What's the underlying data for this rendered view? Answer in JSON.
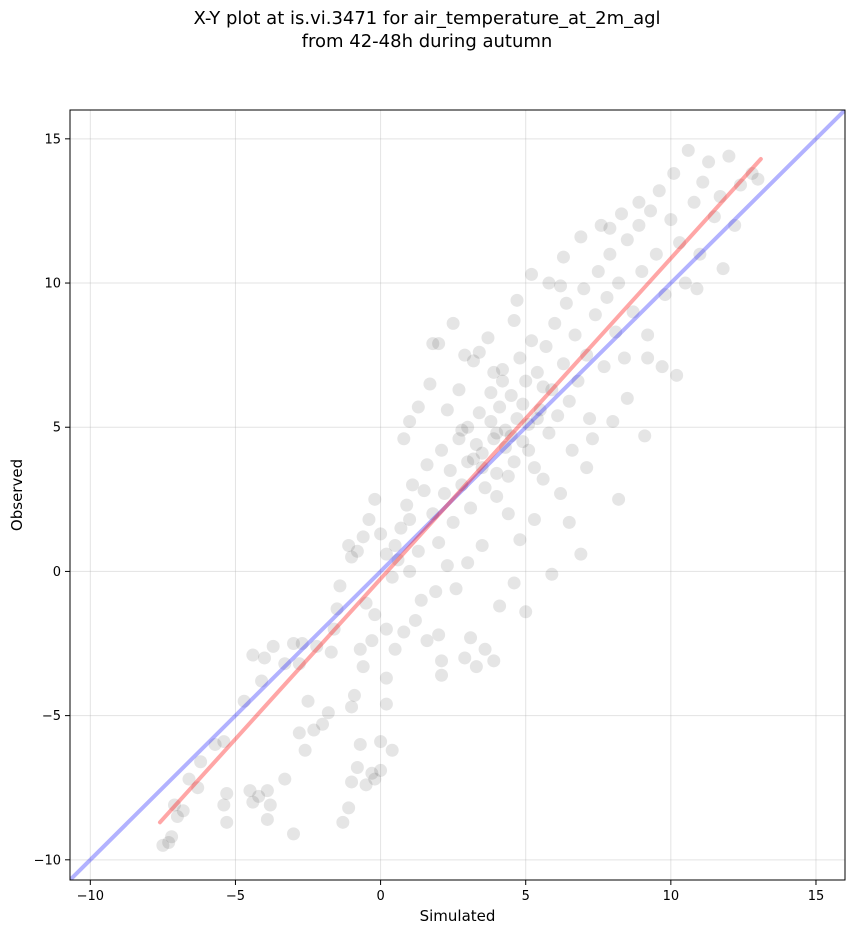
{
  "chart_data": {
    "type": "scatter",
    "title_line1": "X-Y plot at is.vi.3471 for air_temperature_at_2m_agl",
    "title_line2": "from 42-48h during autumn",
    "xlabel": "Simulated",
    "ylabel": "Observed",
    "xlim": [
      -10.7,
      16.0
    ],
    "ylim": [
      -10.7,
      16.0
    ],
    "xticks": [
      -10,
      -5,
      0,
      5,
      10,
      15
    ],
    "yticks": [
      -10,
      -5,
      0,
      5,
      10,
      15
    ],
    "xtick_labels": [
      "−10",
      "−5",
      "0",
      "5",
      "10",
      "15"
    ],
    "ytick_labels": [
      "−10",
      "−5",
      "0",
      "5",
      "10",
      "15"
    ],
    "grid": true,
    "marker_color": "#000000",
    "marker_alpha": 0.1,
    "lines": [
      {
        "role": "identity",
        "color": "#0000ff",
        "alpha": 0.3,
        "x": [
          -10.7,
          16.0
        ],
        "y": [
          -10.7,
          16.0
        ]
      },
      {
        "role": "fit",
        "color": "#ff0000",
        "alpha": 0.35,
        "x": [
          -7.6,
          13.1
        ],
        "y": [
          -8.7,
          14.3
        ]
      }
    ],
    "points": [
      [
        -7.5,
        -9.5
      ],
      [
        -7.2,
        -9.2
      ],
      [
        -7.3,
        -9.4
      ],
      [
        -7.0,
        -8.5
      ],
      [
        -6.8,
        -8.3
      ],
      [
        -7.1,
        -8.1
      ],
      [
        -6.6,
        -7.2
      ],
      [
        -6.3,
        -7.5
      ],
      [
        -6.2,
        -6.6
      ],
      [
        -5.7,
        -6.0
      ],
      [
        -5.4,
        -5.9
      ],
      [
        -5.3,
        -7.7
      ],
      [
        -5.3,
        -8.7
      ],
      [
        -5.4,
        -8.1
      ],
      [
        -4.7,
        -4.5
      ],
      [
        -4.5,
        -7.6
      ],
      [
        -4.4,
        -8.0
      ],
      [
        -4.2,
        -7.8
      ],
      [
        -4.1,
        -3.8
      ],
      [
        -4.4,
        -2.9
      ],
      [
        -4.0,
        -3.0
      ],
      [
        -3.9,
        -8.6
      ],
      [
        -3.8,
        -8.1
      ],
      [
        -3.7,
        -2.6
      ],
      [
        -3.9,
        -7.6
      ],
      [
        -3.3,
        -7.2
      ],
      [
        -3.0,
        -9.1
      ],
      [
        -3.3,
        -3.2
      ],
      [
        -3.0,
        -2.5
      ],
      [
        -2.7,
        -2.5
      ],
      [
        -2.8,
        -3.2
      ],
      [
        -2.5,
        -4.5
      ],
      [
        -2.6,
        -6.2
      ],
      [
        -2.8,
        -5.6
      ],
      [
        -2.3,
        -5.5
      ],
      [
        -2.2,
        -2.6
      ],
      [
        -2.0,
        -5.3
      ],
      [
        -1.8,
        -4.9
      ],
      [
        -1.7,
        -2.8
      ],
      [
        -1.6,
        -2.0
      ],
      [
        -1.4,
        -0.5
      ],
      [
        -1.5,
        -1.3
      ],
      [
        -1.3,
        -8.7
      ],
      [
        -1.1,
        -8.2
      ],
      [
        -1.0,
        -7.3
      ],
      [
        -0.9,
        -4.3
      ],
      [
        -0.8,
        -6.8
      ],
      [
        -1.0,
        -4.7
      ],
      [
        -0.7,
        -2.7
      ],
      [
        -0.6,
        -3.3
      ],
      [
        -0.5,
        -1.1
      ],
      [
        -0.5,
        -7.4
      ],
      [
        -0.3,
        -7.0
      ],
      [
        -0.2,
        -7.2
      ],
      [
        -0.7,
        -6.0
      ],
      [
        0.0,
        -5.9
      ],
      [
        0.2,
        -4.6
      ],
      [
        0.4,
        -6.2
      ],
      [
        0.0,
        -6.9
      ],
      [
        0.2,
        -3.7
      ],
      [
        -1.1,
        0.9
      ],
      [
        -1.0,
        0.5
      ],
      [
        -0.8,
        0.7
      ],
      [
        -0.6,
        1.2
      ],
      [
        -0.4,
        1.8
      ],
      [
        -0.2,
        2.5
      ],
      [
        0.0,
        1.3
      ],
      [
        0.2,
        0.6
      ],
      [
        0.4,
        -0.2
      ],
      [
        0.5,
        0.9
      ],
      [
        0.7,
        1.5
      ],
      [
        0.9,
        2.3
      ],
      [
        1.1,
        3.0
      ],
      [
        1.0,
        1.8
      ],
      [
        1.3,
        0.7
      ],
      [
        1.5,
        2.8
      ],
      [
        1.6,
        3.7
      ],
      [
        1.8,
        2.0
      ],
      [
        2.0,
        1.0
      ],
      [
        2.1,
        4.2
      ],
      [
        2.2,
        2.7
      ],
      [
        2.4,
        3.5
      ],
      [
        2.5,
        1.7
      ],
      [
        2.7,
        4.6
      ],
      [
        2.8,
        3.0
      ],
      [
        3.0,
        5.0
      ],
      [
        3.1,
        2.2
      ],
      [
        3.2,
        3.9
      ],
      [
        3.4,
        5.5
      ],
      [
        3.5,
        4.1
      ],
      [
        3.6,
        2.9
      ],
      [
        3.8,
        6.2
      ],
      [
        3.9,
        4.6
      ],
      [
        4.0,
        3.4
      ],
      [
        4.1,
        5.7
      ],
      [
        4.2,
        7.0
      ],
      [
        4.3,
        4.9
      ],
      [
        4.5,
        6.1
      ],
      [
        4.6,
        3.8
      ],
      [
        4.7,
        5.3
      ],
      [
        4.8,
        7.4
      ],
      [
        4.9,
        4.5
      ],
      [
        5.0,
        6.6
      ],
      [
        5.1,
        5.1
      ],
      [
        5.2,
        8.0
      ],
      [
        5.3,
        3.6
      ],
      [
        5.4,
        6.9
      ],
      [
        5.5,
        5.6
      ],
      [
        5.7,
        7.8
      ],
      [
        5.8,
        4.8
      ],
      [
        5.9,
        6.3
      ],
      [
        6.0,
        8.6
      ],
      [
        6.1,
        5.4
      ],
      [
        6.3,
        7.2
      ],
      [
        6.4,
        9.3
      ],
      [
        6.5,
        5.9
      ],
      [
        6.7,
        8.2
      ],
      [
        6.8,
        6.6
      ],
      [
        7.0,
        9.8
      ],
      [
        7.1,
        7.5
      ],
      [
        7.2,
        5.3
      ],
      [
        7.4,
        8.9
      ],
      [
        7.5,
        10.4
      ],
      [
        7.7,
        7.1
      ],
      [
        7.8,
        9.5
      ],
      [
        7.9,
        11.0
      ],
      [
        8.1,
        8.3
      ],
      [
        8.2,
        10.0
      ],
      [
        8.4,
        7.4
      ],
      [
        8.5,
        11.5
      ],
      [
        8.7,
        9.0
      ],
      [
        8.9,
        12.0
      ],
      [
        9.0,
        10.4
      ],
      [
        9.2,
        8.2
      ],
      [
        9.3,
        12.5
      ],
      [
        9.5,
        11.0
      ],
      [
        9.6,
        13.2
      ],
      [
        9.8,
        9.6
      ],
      [
        10.0,
        12.2
      ],
      [
        10.1,
        13.8
      ],
      [
        10.3,
        11.4
      ],
      [
        10.5,
        10.0
      ],
      [
        10.6,
        14.6
      ],
      [
        10.8,
        12.8
      ],
      [
        11.0,
        11.0
      ],
      [
        11.1,
        13.5
      ],
      [
        11.3,
        14.2
      ],
      [
        11.5,
        12.3
      ],
      [
        11.7,
        13.0
      ],
      [
        12.0,
        14.4
      ],
      [
        12.2,
        12.0
      ],
      [
        12.4,
        13.4
      ],
      [
        12.8,
        13.8
      ],
      [
        13.0,
        13.6
      ],
      [
        11.8,
        10.5
      ],
      [
        10.9,
        9.8
      ],
      [
        9.7,
        7.1
      ],
      [
        10.2,
        6.8
      ],
      [
        9.1,
        4.7
      ],
      [
        8.2,
        2.5
      ],
      [
        7.1,
        3.6
      ],
      [
        6.9,
        0.6
      ],
      [
        6.5,
        1.7
      ],
      [
        5.9,
        -0.1
      ],
      [
        5.0,
        -1.4
      ],
      [
        4.6,
        -0.4
      ],
      [
        4.1,
        -1.2
      ],
      [
        3.9,
        -3.1
      ],
      [
        3.6,
        -2.7
      ],
      [
        3.3,
        -3.3
      ],
      [
        3.1,
        -2.3
      ],
      [
        2.9,
        -3.0
      ],
      [
        2.1,
        -3.6
      ],
      [
        2.1,
        -3.1
      ],
      [
        2.0,
        -2.2
      ],
      [
        1.6,
        -2.4
      ],
      [
        1.2,
        -1.7
      ],
      [
        0.8,
        -2.1
      ],
      [
        0.5,
        -2.7
      ],
      [
        0.2,
        -2.0
      ],
      [
        -0.2,
        -1.5
      ],
      [
        -0.3,
        -2.4
      ],
      [
        2.5,
        8.6
      ],
      [
        2.0,
        7.9
      ],
      [
        1.8,
        7.9
      ],
      [
        2.9,
        7.5
      ],
      [
        3.4,
        7.6
      ],
      [
        3.9,
        6.9
      ],
      [
        1.7,
        6.5
      ],
      [
        1.3,
        5.7
      ],
      [
        0.8,
        4.6
      ],
      [
        1.0,
        5.2
      ],
      [
        4.0,
        2.6
      ],
      [
        4.4,
        2.0
      ],
      [
        4.8,
        1.1
      ],
      [
        5.3,
        1.8
      ],
      [
        5.6,
        3.2
      ],
      [
        6.2,
        2.7
      ],
      [
        6.6,
        4.2
      ],
      [
        7.3,
        4.6
      ],
      [
        8.0,
        5.2
      ],
      [
        8.5,
        6.0
      ],
      [
        9.2,
        7.4
      ],
      [
        3.0,
        0.3
      ],
      [
        3.5,
        0.9
      ],
      [
        2.6,
        -0.6
      ],
      [
        2.3,
        0.2
      ],
      [
        1.9,
        -0.7
      ],
      [
        1.4,
        -1.0
      ],
      [
        1.0,
        0.0
      ],
      [
        0.6,
        0.4
      ],
      [
        5.8,
        10.0
      ],
      [
        5.2,
        10.3
      ],
      [
        6.3,
        10.9
      ],
      [
        4.7,
        9.4
      ],
      [
        4.6,
        8.7
      ],
      [
        3.7,
        8.1
      ],
      [
        3.2,
        7.3
      ],
      [
        2.7,
        6.3
      ],
      [
        2.3,
        5.6
      ],
      [
        7.6,
        12.0
      ],
      [
        8.3,
        12.4
      ],
      [
        6.9,
        11.6
      ],
      [
        8.9,
        12.8
      ],
      [
        7.9,
        11.9
      ],
      [
        6.2,
        9.9
      ],
      [
        4.4,
        3.3
      ],
      [
        4.3,
        4.3
      ],
      [
        4.0,
        4.8
      ],
      [
        3.8,
        5.2
      ],
      [
        4.5,
        4.7
      ],
      [
        4.9,
        5.8
      ],
      [
        5.1,
        4.2
      ],
      [
        3.5,
        3.6
      ],
      [
        3.3,
        4.4
      ],
      [
        3.0,
        3.8
      ],
      [
        2.8,
        4.9
      ],
      [
        4.2,
        6.6
      ],
      [
        5.4,
        5.3
      ],
      [
        5.6,
        6.4
      ]
    ]
  }
}
